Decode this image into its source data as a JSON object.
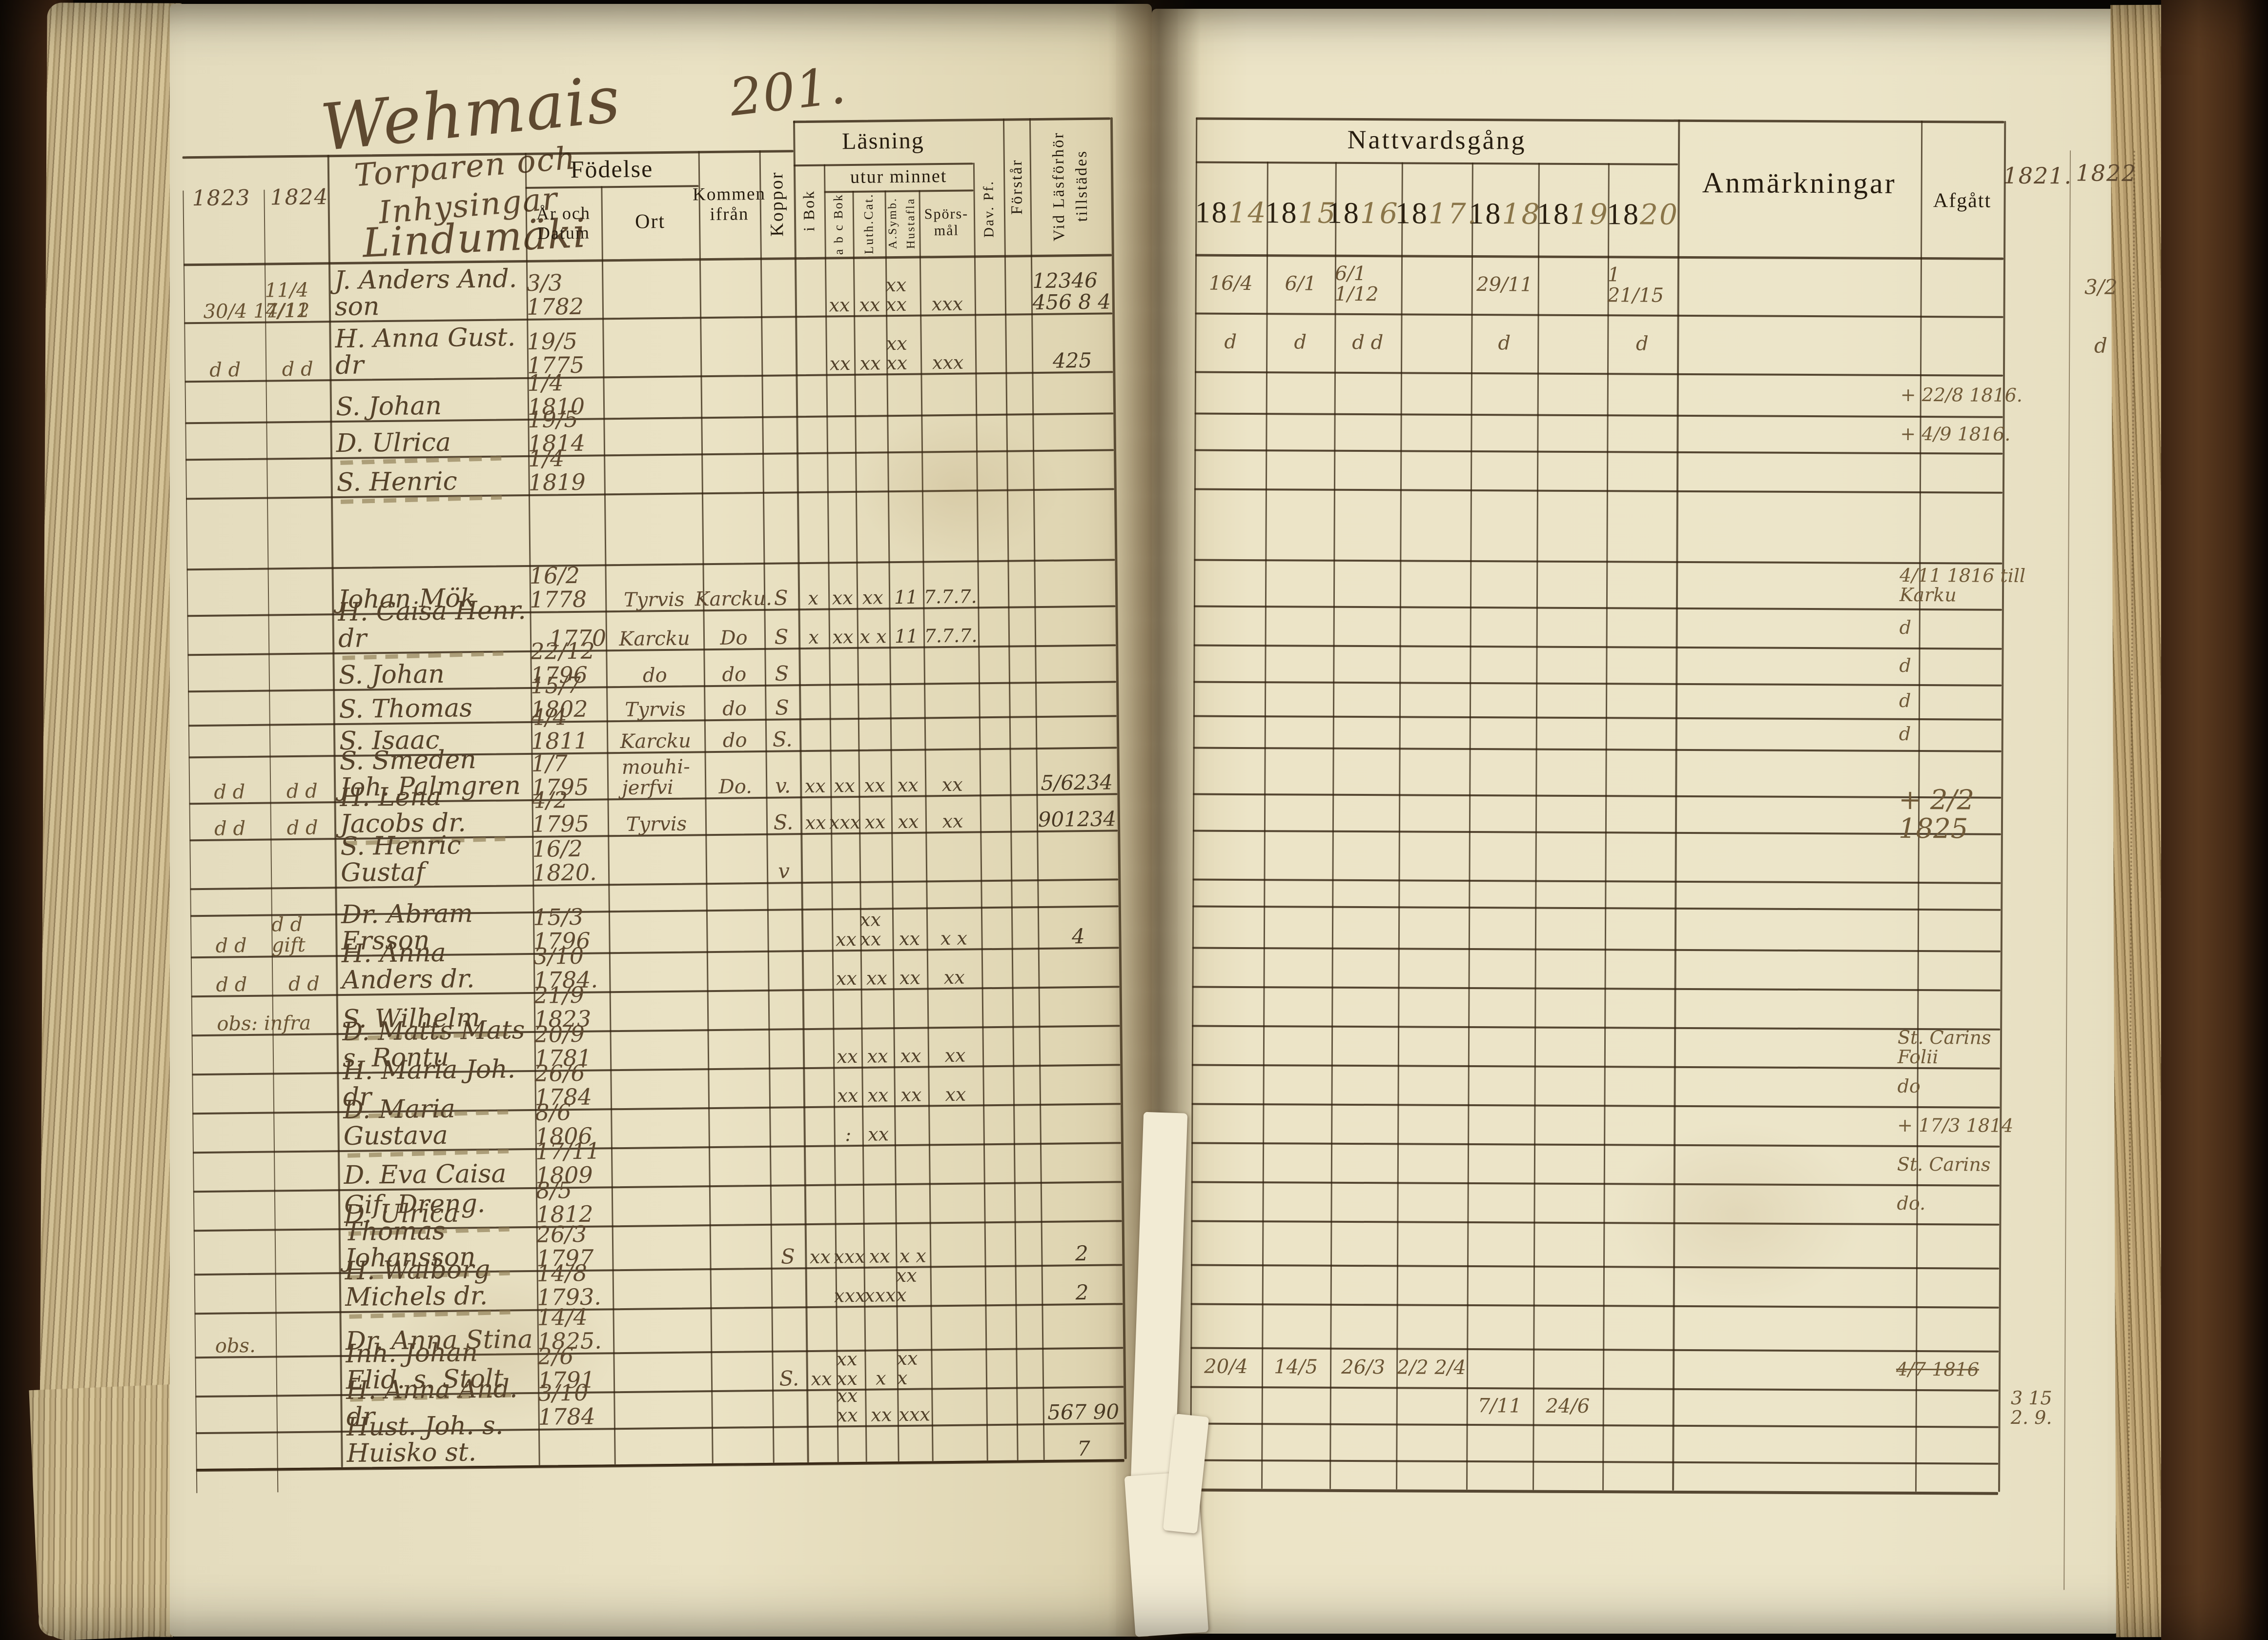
{
  "folio": {
    "place": "Wehmais",
    "number": "201."
  },
  "village": "Lindumäki",
  "left_margin_years": {
    "y1823": "1823",
    "y1824": "1824"
  },
  "right_margin_years": {
    "y1821": "1821.",
    "y1822": "1822"
  },
  "left_headers": {
    "household": "Torparen och\nInhysingar",
    "birth": "Födelse",
    "birth_date": "År och\nDatum",
    "birth_place": "Ort",
    "come_from": "Kommen\nifrån",
    "smallpox": "Koppor",
    "reading": "Läsning",
    "in_book": "i Bok",
    "from_memory": "utur minnet",
    "abc_book": "a b c Bok",
    "luth_cat": "Luth.Cat.",
    "symb": "A.Symb.",
    "hustafla": "Hustafla",
    "sporsmal": "Spörs-\nmål",
    "dav_pf": "Dav. Pf.",
    "forstar": "Förstår",
    "vid_lasforhor": "Vid Läsförhör",
    "tillstades": "tillstädes"
  },
  "right_headers": {
    "communion": "Nattvardsgång",
    "remarks": "Anmärkningar",
    "departed": "Afgått",
    "years": [
      {
        "p": "18",
        "s": "14"
      },
      {
        "p": "18",
        "s": "15"
      },
      {
        "p": "18",
        "s": "16."
      },
      {
        "p": "18",
        "s": "17."
      },
      {
        "p": "18",
        "s": "18"
      },
      {
        "p": "18",
        "s": "19"
      },
      {
        "p": "18",
        "s": "20"
      }
    ]
  },
  "rows": [
    {
      "m1": "30/4 14/12",
      "m2": "11/4 7/11",
      "name": "J. Anders And. son",
      "birth": "3/3 1782",
      "marks": [
        "",
        "xx",
        "xx",
        "xx xx",
        "xxx"
      ],
      "admitted": "12346\n456 8 4",
      "c14": "16/4",
      "c15": "6/1",
      "c16": "6/1 1/12",
      "c18": "29/11",
      "c20": "1 21/15",
      "m1822": "3/2"
    },
    {
      "m1": "d d",
      "m2": "d d",
      "name": "H. Anna Gust. dr",
      "birth": "19/5 1775",
      "marks": [
        "",
        "xx",
        "xx",
        "xx xx",
        "xxx"
      ],
      "admitted": "425",
      "c14": "d",
      "c15": "d",
      "c16": "d d",
      "c18": "d",
      "c20": "d",
      "m1822": "d"
    },
    {
      "name": "S. Johan",
      "birth": "1/4 1810",
      "departed": "+ 22/8 1816."
    },
    {
      "name": "D. Ulrica",
      "birth": "19/5 1814",
      "departed": "+ 4/9 1816.",
      "dash": true
    },
    {
      "name": "S. Henric",
      "birth": "1/4 1819",
      "dash": true
    },
    {},
    {
      "name": "Johan Mök",
      "birth": "16/2 1778",
      "ort": "Tyrvis",
      "from": "Karcku.",
      "pox": "S",
      "marks": [
        "x",
        "xx",
        "xx",
        "11",
        "7.7.7."
      ],
      "departed": "4/11 1816 till\nKarku"
    },
    {
      "name": "H. Caisa Henr. dr",
      "birth": "1770",
      "ort": "Karcku",
      "from": "Do",
      "pox": "S",
      "marks": [
        "x",
        "xx",
        "x x",
        "11",
        "7.7.7."
      ],
      "departed": "d",
      "dash": true
    },
    {
      "name": "S. Johan",
      "birth": "22/12 1796",
      "ort": "do",
      "from": "do",
      "pox": "S",
      "departed": "d"
    },
    {
      "name": "S. Thomas",
      "birth": "15/7 1802",
      "ort": "Tyrvis",
      "from": "do",
      "pox": "S",
      "departed": "d"
    },
    {
      "name": "S. Isaac",
      "birth": "4/4 1811",
      "ort": "Karcku",
      "from": "do",
      "pox": "S.",
      "departed": "d"
    },
    {
      "m1": "d d",
      "m2": "d d",
      "name": "S. Smeden Joh. Palmgren",
      "birth": "1/7 1795",
      "ort": "mouhi-\njerfvi",
      "from": "Do.",
      "pox": "v.",
      "marks": [
        "xx",
        "xx",
        "xx",
        "xx",
        "xx"
      ],
      "admitted": "5/6234"
    },
    {
      "m1": "d d",
      "m2": "d d",
      "name": "H. Lena Jacobs dr.",
      "birth": "4/2 1795",
      "ort": "Tyrvis",
      "pox": "S.",
      "marks": [
        "xx",
        "xxx",
        "xx",
        "xx",
        "xx"
      ],
      "admitted": "901234",
      "departed": "+ 2/2 1825",
      "departedBig": true,
      "dash": true
    },
    {
      "name": "S. Henric Gustaf",
      "birth": "16/2 1820.",
      "pox": "v"
    },
    {},
    {
      "m1": "d d",
      "m2": "d d gift",
      "name": "Dr. Abram Ersson",
      "birth": "15/3 1796",
      "marks": [
        "",
        "xx",
        "xx xx",
        "xx",
        "x x"
      ],
      "admitted": "4"
    },
    {
      "m1": "d d",
      "m2": "d d",
      "name": "H. Anna Anders dr.",
      "birth": "3/10 1784.",
      "marks": [
        "",
        "xx",
        "xx",
        "xx",
        "xx"
      ]
    },
    {
      "m1": "obs: infra",
      "name": "S. Wilhelm",
      "birth": "21/9 1823",
      "dash": true
    },
    {
      "name": "D. Matts Mats s. Rontu",
      "birth": "20/9 1781",
      "marks": [
        "",
        "xx",
        "xx",
        "xx",
        "xx"
      ],
      "departed": "St. Carins\nFolii"
    },
    {
      "name": "H. Maria Joh. dr",
      "birth": "26/6 1784",
      "marks": [
        "",
        "xx",
        "xx",
        "xx",
        "xx"
      ],
      "departed": "do",
      "dash": true
    },
    {
      "name": "D. Maria Gustava",
      "birth": "8/6 1806",
      "marks": [
        "",
        ":",
        "xx",
        "",
        ""
      ],
      "departed": "+ 17/3 1814",
      "dash": true
    },
    {
      "name": "D. Eva Caisa",
      "birth": "17/11 1809",
      "departed": "St. Carins"
    },
    {
      "name": "D. Ulrica",
      "birth": "8/5 1812",
      "departed": "do.",
      "dash": true
    },
    {
      "name": "Gif. Dreng. Thomas Johansson",
      "birth": "26/3 1797",
      "pox": "S",
      "marks": [
        "xx",
        "xxx",
        "xx",
        "x x",
        ""
      ],
      "admitted": "2",
      "dash": true
    },
    {
      "name": "H. Walborg Michels dr.",
      "birth": "14/8 1793.",
      "marks": [
        "",
        "xxx",
        "xxx",
        "xx x",
        ""
      ],
      "admitted": "2",
      "dash": true
    },
    {
      "m1": "obs.",
      "name": "Dr. Anna Stina",
      "birth": "14/4 1825."
    },
    {
      "name": "Inh. Johan Elid. s. Stolt",
      "birth": "2/6 1791",
      "pox": "S.",
      "marks": [
        "xx",
        "xx xx",
        "x",
        "xx x",
        ""
      ],
      "departed": "4/7 1816",
      "departedStrike": true,
      "c14": "20/4",
      "c15": "14/5",
      "c16": "26/3",
      "c17": "2/2 2/4",
      "dash": true
    },
    {
      "name": "H. Anna And. dr",
      "birth": "3/10 1784",
      "marks": [
        "",
        "xx xx",
        "xx",
        "xxx",
        ""
      ],
      "admitted": "567 90",
      "c18": "7/11",
      "c19": "24/6",
      "m1821": "3 15\n2. 9."
    },
    {
      "name": "Hust. Joh. s. Huisko st.",
      "admitted": "7"
    }
  ]
}
